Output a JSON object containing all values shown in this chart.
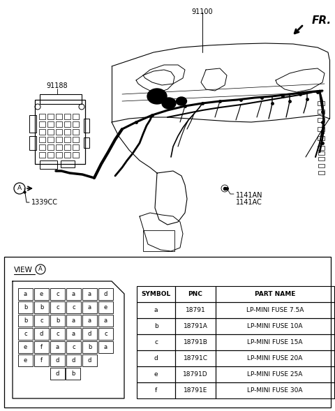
{
  "background_color": "#ffffff",
  "text_color": "#000000",
  "label_91100": "91100",
  "label_91188": "91188",
  "label_1339CC": "1339CC",
  "label_1141AN": "1141AN",
  "label_1141AC": "1141AC",
  "label_FR": "FR.",
  "fuse_grid": [
    [
      "a",
      "e",
      "c",
      "a",
      "a",
      "d"
    ],
    [
      "b",
      "b",
      "c",
      "c",
      "a",
      "e"
    ],
    [
      "b",
      "c",
      "b",
      "a",
      "a",
      "a"
    ],
    [
      "c",
      "d",
      "c",
      "a",
      "d",
      "c"
    ],
    [
      "e",
      "f",
      "a",
      "c",
      "b",
      "a"
    ],
    [
      "e",
      "f",
      "d",
      "d",
      "d",
      ""
    ]
  ],
  "fuse_bottom": [
    "d",
    "b"
  ],
  "table_headers": [
    "SYMBOL",
    "PNC",
    "PART NAME"
  ],
  "table_rows": [
    [
      "a",
      "18791",
      "LP-MINI FUSE 7.5A"
    ],
    [
      "b",
      "18791A",
      "LP-MINI FUSE 10A"
    ],
    [
      "c",
      "18791B",
      "LP-MINI FUSE 15A"
    ],
    [
      "d",
      "18791C",
      "LP-MINI FUSE 20A"
    ],
    [
      "e",
      "18791D",
      "LP-MINI FUSE 25A"
    ],
    [
      "f",
      "18791E",
      "LP-MINI FUSE 30A"
    ]
  ]
}
